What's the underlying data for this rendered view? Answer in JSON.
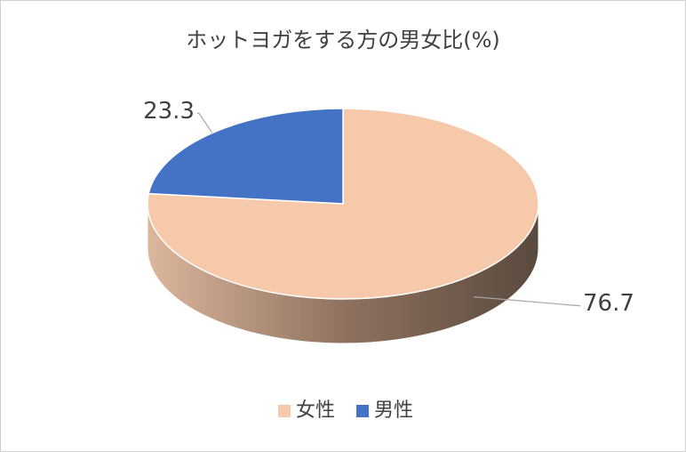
{
  "chart_data": {
    "type": "pie3d",
    "title": "ホットヨガをする方の男女比(%)",
    "categories": [
      "女性",
      "男性"
    ],
    "values": [
      76.7,
      23.3
    ],
    "colors": [
      "#f6c9aa",
      "#4472c4"
    ],
    "legend": "bottom"
  }
}
